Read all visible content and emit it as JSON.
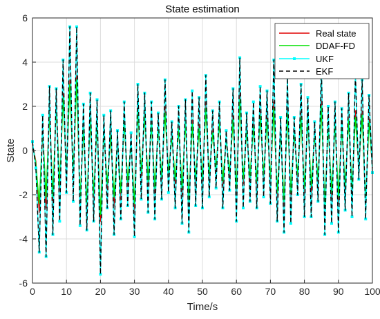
{
  "chart_data": {
    "type": "line",
    "title": "State estimation",
    "xlabel": "Time/s",
    "ylabel": "State",
    "xlim": [
      0,
      100
    ],
    "ylim": [
      -6,
      6
    ],
    "xticks": [
      0,
      10,
      20,
      30,
      40,
      50,
      60,
      70,
      80,
      90,
      100
    ],
    "yticks": [
      -6,
      -4,
      -2,
      0,
      2,
      4,
      6
    ],
    "grid": true,
    "legend_position": "top-right",
    "x": [
      0,
      1,
      2,
      3,
      4,
      5,
      6,
      7,
      8,
      9,
      10,
      11,
      12,
      13,
      14,
      15,
      16,
      17,
      18,
      19,
      20,
      21,
      22,
      23,
      24,
      25,
      26,
      27,
      28,
      29,
      30,
      31,
      32,
      33,
      34,
      35,
      36,
      37,
      38,
      39,
      40,
      41,
      42,
      43,
      44,
      45,
      46,
      47,
      48,
      49,
      50,
      51,
      52,
      53,
      54,
      55,
      56,
      57,
      58,
      59,
      60,
      61,
      62,
      63,
      64,
      65,
      66,
      67,
      68,
      69,
      70,
      71,
      72,
      73,
      74,
      75,
      76,
      77,
      78,
      79,
      80,
      81,
      82,
      83,
      84,
      85,
      86,
      87,
      88,
      89,
      90,
      91,
      92,
      93,
      94,
      95,
      96,
      97,
      98,
      99,
      100
    ],
    "series": [
      {
        "name": "Real state",
        "color": "#e00000",
        "dash": "solid",
        "marker": "none",
        "values": [
          0.3,
          -0.5,
          -2.8,
          0.8,
          -2.6,
          2.0,
          -2.4,
          2.2,
          -1.8,
          2.6,
          -1.0,
          3.2,
          -1.2,
          3.4,
          -2.5,
          1.2,
          -2.7,
          1.7,
          -2.3,
          1.4,
          -3.2,
          1.0,
          -1.8,
          0.8,
          -2.5,
          0.6,
          -2.2,
          1.5,
          -1.6,
          0.4,
          -2.8,
          2.0,
          -1.2,
          1.8,
          -1.6,
          1.5,
          -2.0,
          1.2,
          -1.4,
          2.0,
          -1.2,
          0.8,
          -1.5,
          1.2,
          -2.0,
          1.5,
          -2.6,
          1.4,
          -1.5,
          1.2,
          -1.5,
          2.2,
          -1.3,
          1.0,
          -1.0,
          1.5,
          -1.6,
          0.6,
          -1.2,
          1.6,
          -2.0,
          2.6,
          -1.5,
          1.0,
          -1.4,
          1.3,
          -1.6,
          1.8,
          -1.3,
          1.6,
          -1.5,
          2.2,
          -2.2,
          1.0,
          -2.6,
          2.0,
          -2.2,
          0.9,
          -1.3,
          1.7,
          -2.0,
          1.6,
          -1.9,
          0.8,
          -1.5,
          2.3,
          -2.8,
          1.3,
          -2.2,
          1.4,
          -2.4,
          1.2,
          -1.8,
          1.6,
          -2.0,
          1.8,
          -0.8,
          1.8,
          -2.6,
          1.5,
          -0.8
        ]
      },
      {
        "name": "DDAF-FD",
        "color": "#00e000",
        "dash": "solid",
        "marker": "none",
        "values": [
          0.3,
          -0.6,
          -2.4,
          0.9,
          -2.1,
          1.7,
          -2.1,
          2.0,
          -1.6,
          2.4,
          -0.9,
          3.0,
          -1.0,
          3.2,
          -2.2,
          1.0,
          -2.4,
          1.5,
          -2.0,
          1.2,
          -2.9,
          0.8,
          -1.5,
          0.7,
          -2.1,
          0.5,
          -1.9,
          1.3,
          -1.4,
          0.3,
          -2.4,
          1.8,
          -1.0,
          1.6,
          -1.4,
          1.2,
          -1.7,
          1.0,
          -1.2,
          1.7,
          -1.0,
          0.6,
          -1.3,
          1.0,
          -1.7,
          1.3,
          -2.3,
          1.2,
          -1.3,
          1.0,
          -1.3,
          1.9,
          -1.1,
          0.8,
          -0.8,
          1.3,
          -1.4,
          0.5,
          -1.0,
          1.4,
          -1.7,
          2.3,
          -1.3,
          0.9,
          -1.2,
          1.1,
          -1.4,
          1.6,
          -1.1,
          1.4,
          -1.3,
          1.9,
          -1.9,
          0.8,
          -2.3,
          1.7,
          -1.9,
          0.8,
          -1.1,
          1.5,
          -1.7,
          1.4,
          -1.6,
          0.7,
          -1.3,
          2.0,
          -2.5,
          1.1,
          -1.9,
          1.2,
          -2.1,
          1.0,
          -1.6,
          1.4,
          -1.7,
          1.5,
          -0.7,
          1.6,
          -2.3,
          1.3,
          -0.7
        ]
      },
      {
        "name": "UKF",
        "color": "#00ffff",
        "dash": "solid",
        "marker": "square",
        "values": [
          0.4,
          -0.8,
          -4.6,
          1.6,
          -4.8,
          2.9,
          -3.8,
          2.8,
          -3.2,
          4.1,
          -1.9,
          5.6,
          -2.3,
          5.6,
          -3.4,
          2.1,
          -3.6,
          2.6,
          -3.2,
          2.3,
          -5.6,
          1.6,
          -2.6,
          1.8,
          -3.8,
          0.9,
          -3.1,
          2.2,
          -2.5,
          0.8,
          -3.9,
          3.0,
          -2.2,
          2.6,
          -2.8,
          2.2,
          -3.1,
          1.7,
          -2.2,
          3.2,
          -1.9,
          1.3,
          -2.6,
          2.0,
          -3.3,
          2.3,
          -3.7,
          2.7,
          -2.5,
          2.4,
          -2.6,
          3.4,
          -2.1,
          1.8,
          -1.7,
          2.2,
          -2.6,
          0.9,
          -1.8,
          2.8,
          -3.2,
          4.2,
          -2.6,
          1.7,
          -2.3,
          2.2,
          -2.6,
          2.9,
          -2.1,
          2.7,
          -2.4,
          4.1,
          -3.2,
          1.5,
          -3.7,
          3.3,
          -3.3,
          1.5,
          -2.0,
          3.0,
          -3.0,
          2.4,
          -3.0,
          1.3,
          -2.3,
          3.8,
          -3.8,
          2.0,
          -3.3,
          2.2,
          -3.7,
          1.9,
          -2.7,
          2.6,
          -3.0,
          3.5,
          -1.3,
          3.2,
          -3.1,
          2.5,
          -1.0
        ]
      },
      {
        "name": "EKF",
        "color": "#000000",
        "dash": "dashed",
        "marker": "none",
        "values": [
          0.4,
          -0.8,
          -4.6,
          1.6,
          -4.8,
          2.9,
          -3.8,
          2.8,
          -3.2,
          4.1,
          -1.9,
          5.6,
          -2.3,
          5.6,
          -3.4,
          2.1,
          -3.6,
          2.6,
          -3.2,
          2.3,
          -5.6,
          1.6,
          -2.6,
          1.8,
          -3.8,
          0.9,
          -3.1,
          2.2,
          -2.5,
          0.8,
          -3.9,
          3.0,
          -2.2,
          2.6,
          -2.8,
          2.2,
          -3.1,
          1.7,
          -2.2,
          3.2,
          -1.9,
          1.3,
          -2.6,
          2.0,
          -3.3,
          2.3,
          -3.7,
          2.7,
          -2.5,
          2.4,
          -2.6,
          3.4,
          -2.1,
          1.8,
          -1.7,
          2.2,
          -2.6,
          0.9,
          -1.8,
          2.8,
          -3.2,
          4.2,
          -2.6,
          1.7,
          -2.3,
          2.2,
          -2.6,
          2.9,
          -2.1,
          2.7,
          -2.4,
          4.1,
          -3.2,
          1.5,
          -3.7,
          3.3,
          -3.3,
          1.5,
          -2.0,
          3.0,
          -3.0,
          2.4,
          -3.0,
          1.3,
          -2.3,
          3.8,
          -3.8,
          2.0,
          -3.3,
          2.2,
          -3.7,
          1.9,
          -2.7,
          2.6,
          -3.0,
          3.5,
          -1.3,
          3.2,
          -3.1,
          2.5,
          -1.0
        ]
      }
    ]
  }
}
